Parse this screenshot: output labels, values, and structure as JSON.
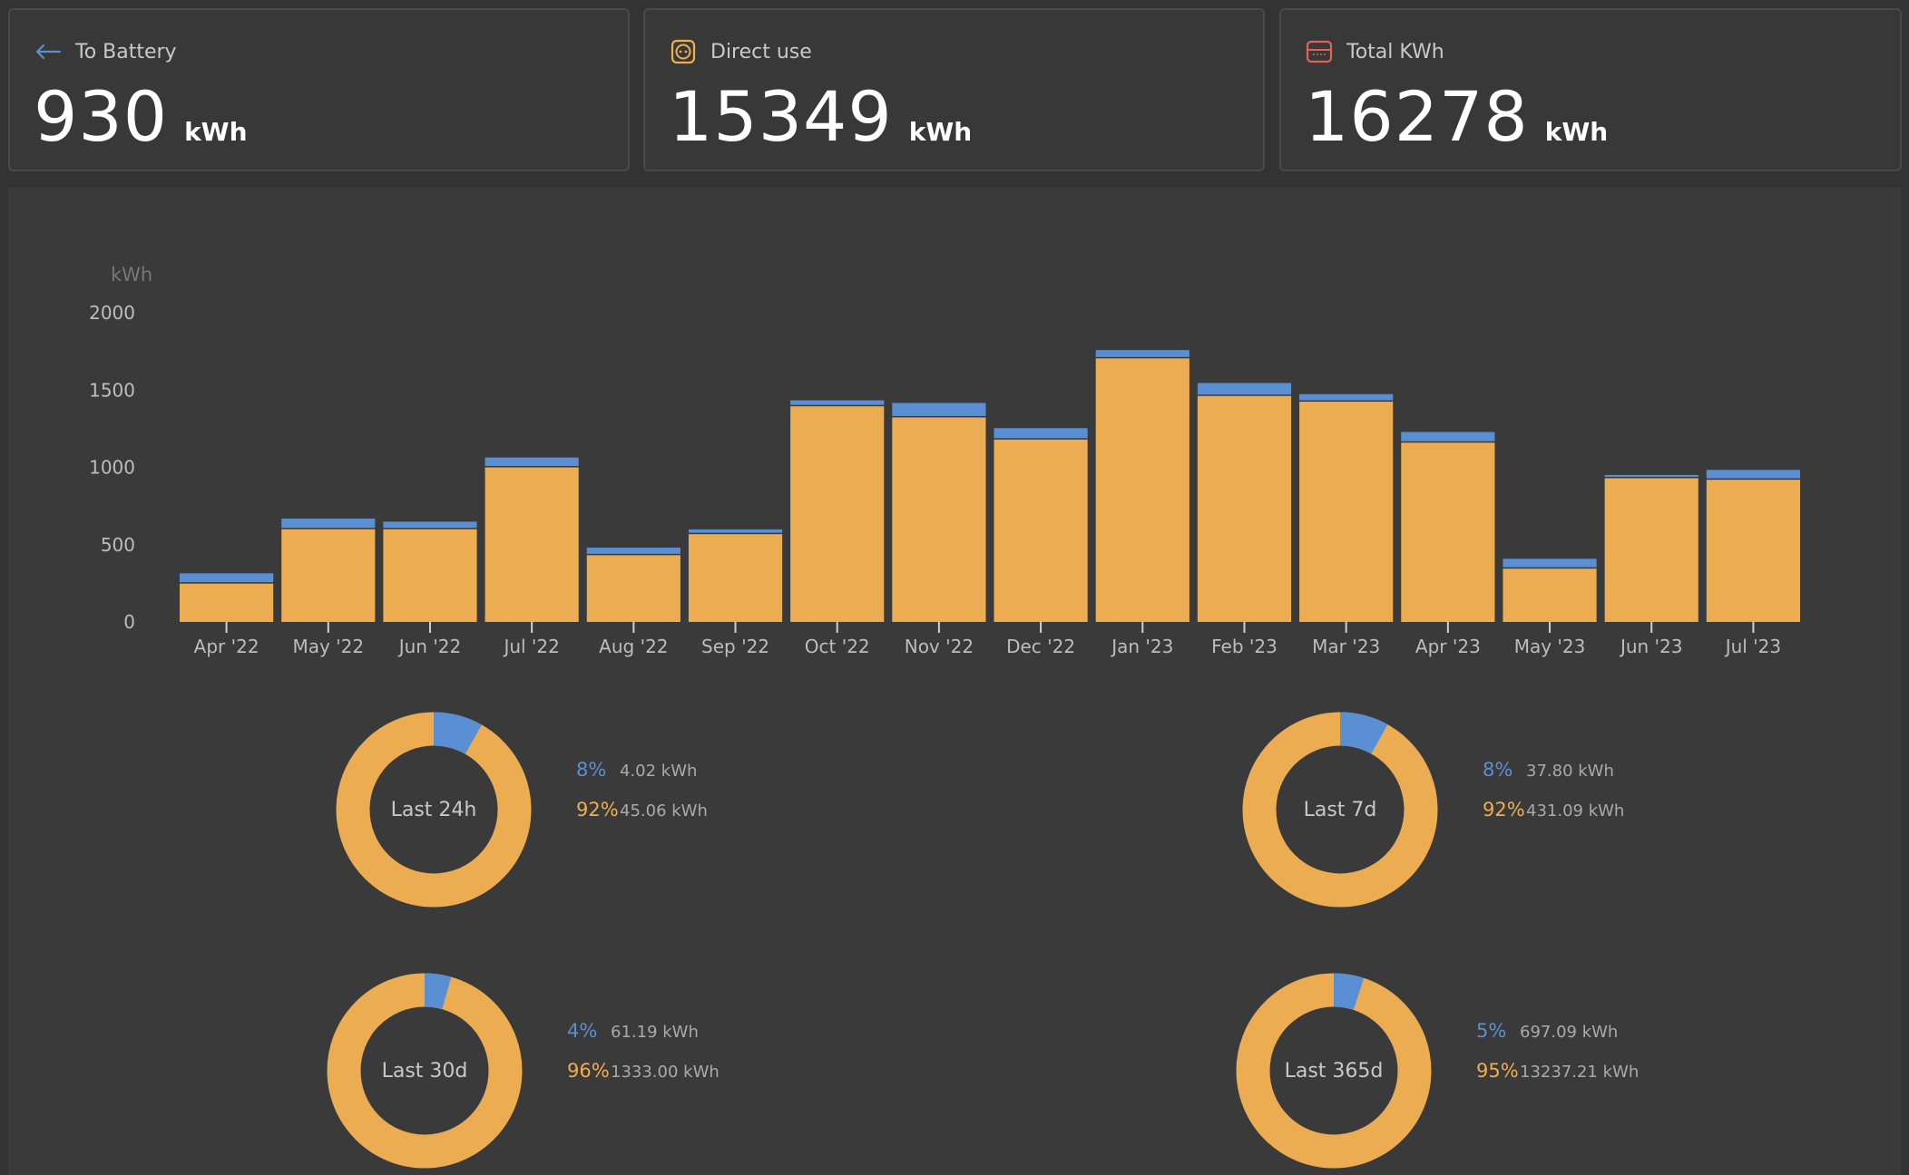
{
  "colors": {
    "battery": "#5a8fd4",
    "direct": "#ecac52",
    "background": "#3a3a3a"
  },
  "cards": [
    {
      "label": "To Battery",
      "value": "930",
      "unit": "kWh",
      "icon": "arrow-left-icon"
    },
    {
      "label": "Direct use",
      "value": "15349",
      "unit": "kWh",
      "icon": "socket-icon"
    },
    {
      "label": "Total KWh",
      "value": "16278",
      "unit": "kWh",
      "icon": "meter-icon"
    }
  ],
  "chart_data": {
    "type": "bar",
    "stacked": true,
    "ylabel": "kWh",
    "ylim": [
      0,
      2000
    ],
    "yticks": [
      0,
      500,
      1000,
      1500,
      2000
    ],
    "categories": [
      "Apr '22",
      "May '22",
      "Jun '22",
      "Jul '22",
      "Aug '22",
      "Sep '22",
      "Oct '22",
      "Nov '22",
      "Dec '22",
      "Jan '23",
      "Feb '23",
      "Mar '23",
      "Apr '23",
      "May '23",
      "Jun '23",
      "Jul '23"
    ],
    "series": [
      {
        "name": "Direct use",
        "values": [
          248,
          600,
          600,
          1000,
          432,
          568,
          1395,
          1323,
          1180,
          1705,
          1462,
          1425,
          1160,
          345,
          930,
          920
        ]
      },
      {
        "name": "To Battery",
        "values": [
          58,
          60,
          40,
          55,
          40,
          22,
          30,
          85,
          65,
          45,
          75,
          40,
          60,
          55,
          12,
          55
        ]
      }
    ]
  },
  "donuts": [
    {
      "label": "Last 24h",
      "battery_pct": "8%",
      "battery_kwh": "4.02 kWh",
      "direct_pct": "92%",
      "direct_kwh": "45.06 kWh",
      "battery_fraction": 0.082
    },
    {
      "label": "Last 7d",
      "battery_pct": "8%",
      "battery_kwh": "37.80 kWh",
      "direct_pct": "92%",
      "direct_kwh": "431.09 kWh",
      "battery_fraction": 0.081
    },
    {
      "label": "Last 30d",
      "battery_pct": "4%",
      "battery_kwh": "61.19 kWh",
      "direct_pct": "96%",
      "direct_kwh": "1333.00 kWh",
      "battery_fraction": 0.044
    },
    {
      "label": "Last 365d",
      "battery_pct": "5%",
      "battery_kwh": "697.09 kWh",
      "direct_pct": "95%",
      "direct_kwh": "13237.21 kWh",
      "battery_fraction": 0.05
    }
  ]
}
